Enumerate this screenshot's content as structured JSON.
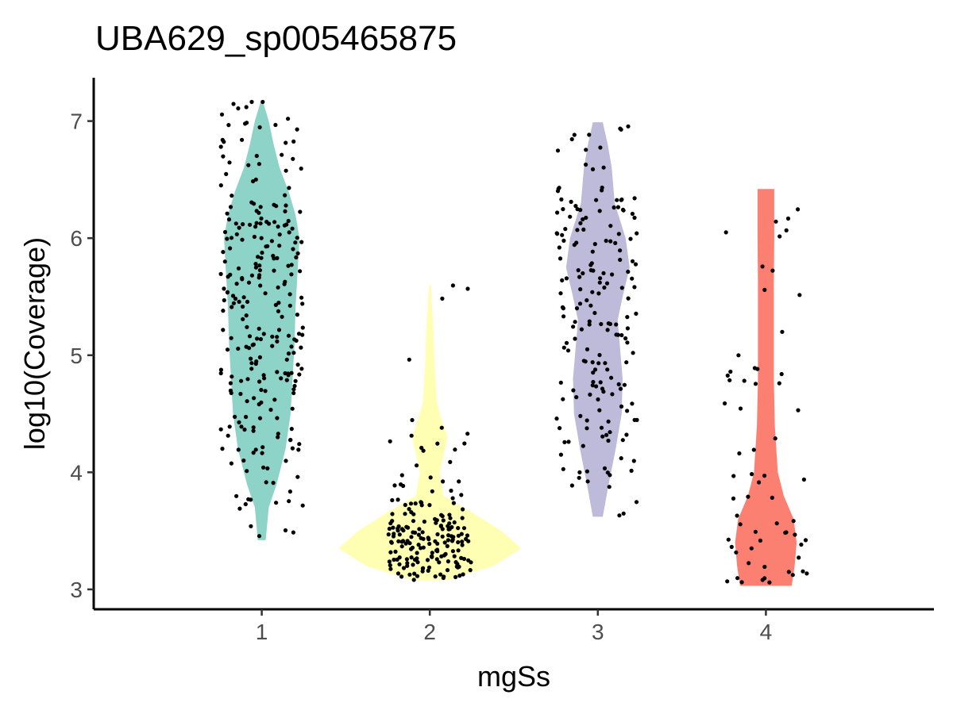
{
  "chart_data": {
    "type": "violin",
    "title": "UBA629_sp005465875",
    "xlabel": "mgSs",
    "ylabel": "log10(Coverage)",
    "categories": [
      "1",
      "2",
      "3",
      "4"
    ],
    "ylim": [
      2.83,
      7.37
    ],
    "yticks": [
      3,
      4,
      5,
      6,
      7
    ],
    "grid": false,
    "legend": "none",
    "colors": [
      "#8dd3c7",
      "#ffffb3",
      "#bebada",
      "#fb8072"
    ],
    "groups": [
      {
        "category": "1",
        "min": 3.42,
        "max": 7.17,
        "density": [
          [
            3.42,
            0.2
          ],
          [
            3.7,
            0.35
          ],
          [
            3.9,
            0.75
          ],
          [
            4.2,
            1.2
          ],
          [
            4.5,
            1.45
          ],
          [
            4.8,
            1.55
          ],
          [
            5.1,
            1.65
          ],
          [
            5.4,
            1.7
          ],
          [
            5.7,
            1.8
          ],
          [
            6.0,
            1.9
          ],
          [
            6.2,
            1.7
          ],
          [
            6.4,
            1.35
          ],
          [
            6.6,
            0.9
          ],
          [
            6.8,
            0.6
          ],
          [
            7.0,
            0.35
          ],
          [
            7.17,
            0.05
          ]
        ],
        "n_points": 260,
        "point_dist": [
          [
            3.4,
            3.9,
            0.05
          ],
          [
            3.9,
            4.6,
            0.15
          ],
          [
            4.6,
            5.4,
            0.28
          ],
          [
            5.4,
            6.3,
            0.38
          ],
          [
            6.3,
            7.2,
            0.14
          ]
        ]
      },
      {
        "category": "2",
        "min": 3.08,
        "max": 5.6,
        "density": [
          [
            3.08,
            0.9
          ],
          [
            3.2,
            3.2
          ],
          [
            3.35,
            4.6
          ],
          [
            3.5,
            3.6
          ],
          [
            3.65,
            2.2
          ],
          [
            3.8,
            0.7
          ],
          [
            4.0,
            0.5
          ],
          [
            4.15,
            0.7
          ],
          [
            4.3,
            0.9
          ],
          [
            4.45,
            0.6
          ],
          [
            4.6,
            0.35
          ],
          [
            4.9,
            0.25
          ],
          [
            5.2,
            0.18
          ],
          [
            5.6,
            0.05
          ]
        ],
        "n_points": 190,
        "point_dist": [
          [
            3.08,
            3.25,
            0.2
          ],
          [
            3.25,
            3.55,
            0.5
          ],
          [
            3.55,
            3.75,
            0.15
          ],
          [
            3.75,
            4.5,
            0.13
          ],
          [
            4.5,
            5.6,
            0.02
          ]
        ]
      },
      {
        "category": "3",
        "min": 3.62,
        "max": 6.99,
        "density": [
          [
            3.62,
            0.25
          ],
          [
            3.9,
            0.55
          ],
          [
            4.2,
            0.9
          ],
          [
            4.5,
            1.2
          ],
          [
            4.8,
            1.25
          ],
          [
            5.1,
            1.1
          ],
          [
            5.3,
            1.0
          ],
          [
            5.5,
            1.25
          ],
          [
            5.75,
            1.6
          ],
          [
            6.0,
            1.4
          ],
          [
            6.3,
            0.85
          ],
          [
            6.6,
            0.7
          ],
          [
            6.8,
            0.5
          ],
          [
            6.99,
            0.25
          ]
        ],
        "n_points": 185,
        "point_dist": [
          [
            3.6,
            4.3,
            0.12
          ],
          [
            4.3,
            5.0,
            0.23
          ],
          [
            5.0,
            5.6,
            0.22
          ],
          [
            5.6,
            6.3,
            0.3
          ],
          [
            6.3,
            7.0,
            0.13
          ]
        ]
      },
      {
        "category": "4",
        "min": 3.03,
        "max": 6.42,
        "density": [
          [
            3.03,
            1.3
          ],
          [
            3.2,
            1.45
          ],
          [
            3.4,
            1.55
          ],
          [
            3.6,
            1.4
          ],
          [
            3.8,
            0.9
          ],
          [
            4.0,
            0.6
          ],
          [
            4.4,
            0.45
          ],
          [
            4.8,
            0.4
          ],
          [
            5.2,
            0.4
          ],
          [
            5.6,
            0.4
          ],
          [
            6.0,
            0.42
          ],
          [
            6.3,
            0.42
          ],
          [
            6.42,
            0.42
          ]
        ],
        "n_points": 62,
        "point_dist": [
          [
            3.0,
            3.5,
            0.38
          ],
          [
            3.5,
            4.2,
            0.22
          ],
          [
            4.2,
            5.0,
            0.22
          ],
          [
            5.0,
            6.5,
            0.18
          ]
        ]
      }
    ]
  }
}
